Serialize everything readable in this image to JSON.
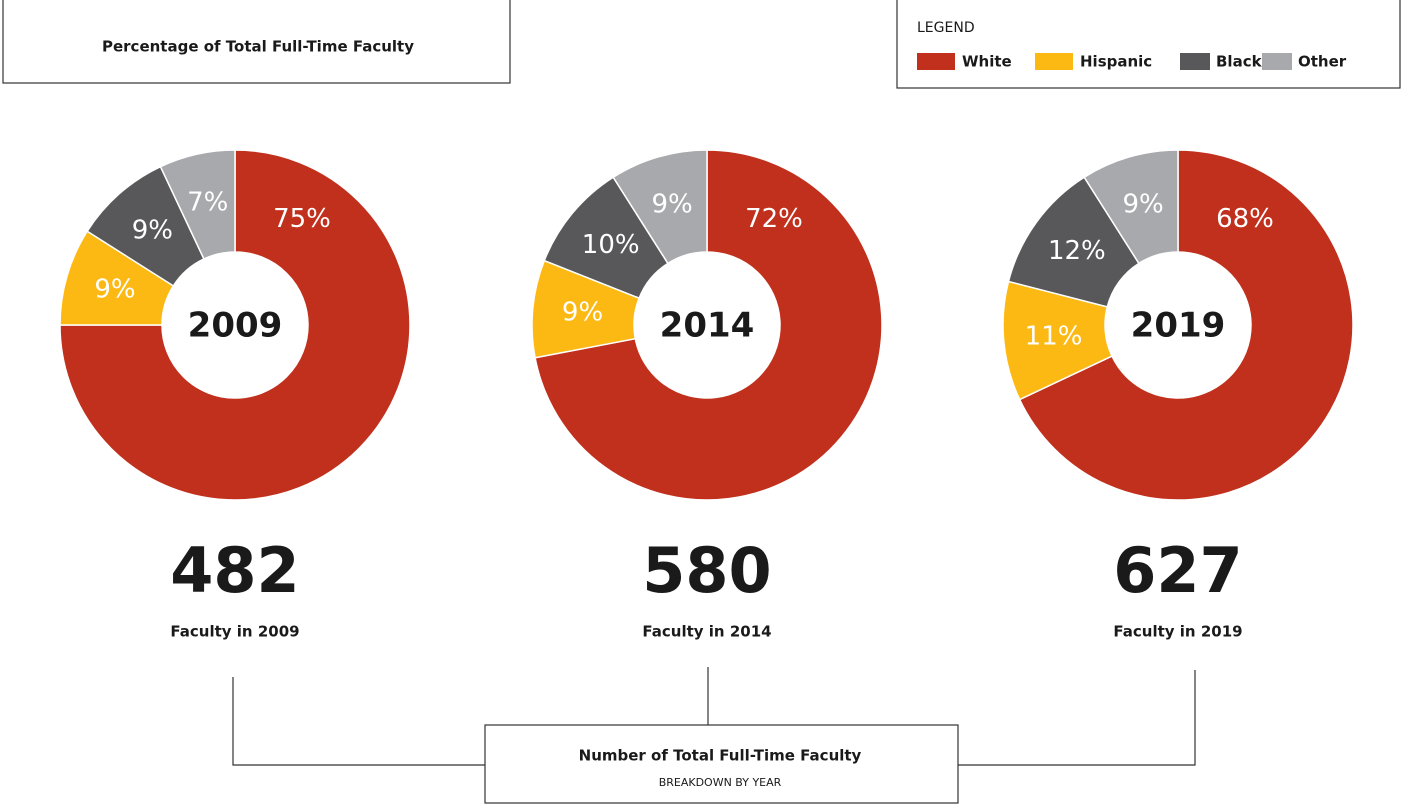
{
  "title": "Percentage of Total Full-Time Faculty",
  "legend": {
    "title": "LEGEND",
    "items": [
      {
        "name": "White",
        "color": "#c0301c"
      },
      {
        "name": "Hispanic",
        "color": "#fdb913"
      },
      {
        "name": "Black",
        "color": "#58585a"
      },
      {
        "name": "Other",
        "color": "#a7a9ac"
      }
    ]
  },
  "chart_data": [
    {
      "type": "pie",
      "donut": true,
      "title": "2009",
      "values": [
        75,
        9,
        9,
        7
      ],
      "value_labels": [
        "75%",
        "9%",
        "9%",
        "7%"
      ],
      "total": 482,
      "total_label": "Faculty in 2009"
    },
    {
      "type": "pie",
      "donut": true,
      "title": "2014",
      "values": [
        72,
        9,
        10,
        9
      ],
      "value_labels": [
        "72%",
        "9%",
        "10%",
        "9%"
      ],
      "total": 580,
      "total_label": "Faculty in 2014"
    },
    {
      "type": "pie",
      "donut": true,
      "title": "2019",
      "values": [
        68,
        11,
        12,
        9
      ],
      "value_labels": [
        "68%",
        "11%",
        "12%",
        "9%"
      ],
      "total": 627,
      "total_label": "Faculty in 2019"
    }
  ],
  "footer": {
    "title": "Number of Total Full-Time Faculty",
    "subtitle": "BREAKDOWN BY YEAR"
  }
}
